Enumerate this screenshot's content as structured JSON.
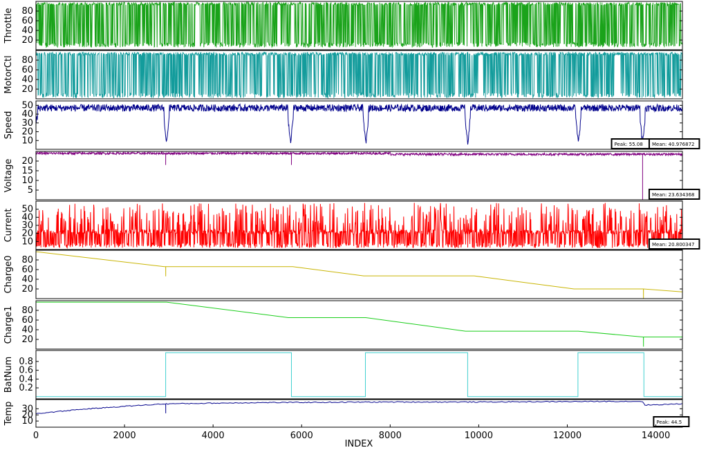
{
  "chart_data": {
    "type": "line",
    "xlabel": "INDEX",
    "xlim": [
      0,
      14600
    ],
    "x_ticks": [
      0,
      2000,
      4000,
      6000,
      8000,
      10000,
      12000,
      14000
    ],
    "x_tick_labels": [
      "0",
      "2000",
      "4000",
      "6000",
      "8000",
      "10000",
      "12000",
      "14000"
    ],
    "panels": [
      {
        "name": "Throttle",
        "ylabel": "Throttle",
        "color": "#1aa31a",
        "ylim": [
          0,
          100
        ],
        "ticks": [
          20,
          40,
          60,
          80
        ],
        "tick_labels": [
          "20",
          "40",
          "60",
          "80"
        ],
        "kind": "pulse",
        "high": 98,
        "low": 5,
        "dense": 0.45,
        "annotations": []
      },
      {
        "name": "MotorCtl",
        "ylabel": "MotorCtl",
        "color": "#139c9c",
        "ylim": [
          0,
          100
        ],
        "ticks": [
          20,
          40,
          60,
          80
        ],
        "tick_labels": [
          "20",
          "40",
          "60",
          "80"
        ],
        "kind": "pulse",
        "high": 96,
        "low": 2,
        "dense": 0.35,
        "annotations": []
      },
      {
        "name": "Speed",
        "ylabel": "Speed",
        "color": "#00008b",
        "ylim": [
          0,
          55
        ],
        "ticks": [
          10,
          20,
          30,
          40,
          50
        ],
        "tick_labels": [
          "10",
          "20",
          "30",
          "40",
          "50"
        ],
        "kind": "noise",
        "base": 47,
        "spread": 4,
        "dips": [
          2950,
          5750,
          7450,
          9750,
          12250,
          13700
        ],
        "annotations": [
          {
            "text": "Peak: 55.08",
            "x": 13000
          },
          {
            "text": "Mean: 40.976872",
            "x": 13850
          }
        ]
      },
      {
        "name": "Voltage",
        "ylabel": "Voltage",
        "color": "#800080",
        "ylim": [
          0,
          25
        ],
        "ticks": [
          5,
          10,
          15,
          20
        ],
        "tick_labels": [
          "5",
          "10",
          "15",
          "20"
        ],
        "kind": "flat",
        "base": 24,
        "spread": 0.6,
        "spikes": [
          2930,
          5770,
          13700
        ],
        "annotations": [
          {
            "text": "Mean: 23.634368",
            "x": 13850
          }
        ]
      },
      {
        "name": "Current",
        "ylabel": "Current",
        "color": "#ff0000",
        "ylim": [
          0,
          60
        ],
        "ticks": [
          10,
          20,
          30,
          40,
          50
        ],
        "tick_labels": [
          "10",
          "20",
          "30",
          "40",
          "50"
        ],
        "kind": "spiky",
        "base": 22,
        "spread": 35,
        "annotations": [
          {
            "text": "Mean: 20.800347",
            "x": 13850
          }
        ]
      },
      {
        "name": "Charge0",
        "ylabel": "Charge0",
        "color": "#c8b400",
        "ylim": [
          0,
          100
        ],
        "ticks": [
          20,
          40,
          60,
          80
        ],
        "tick_labels": [
          "20",
          "40",
          "60",
          "80"
        ],
        "kind": "steps",
        "points": [
          [
            0,
            97
          ],
          [
            2900,
            66
          ],
          [
            2950,
            66
          ],
          [
            5800,
            66
          ],
          [
            7400,
            47
          ],
          [
            9900,
            47
          ],
          [
            12150,
            20
          ],
          [
            13700,
            20
          ],
          [
            14600,
            14
          ]
        ],
        "spikes": [
          2930,
          13720
        ],
        "annotations": []
      },
      {
        "name": "Charge1",
        "ylabel": "Charge1",
        "color": "#19cd19",
        "ylim": [
          0,
          100
        ],
        "ticks": [
          20,
          40,
          60,
          80
        ],
        "tick_labels": [
          "20",
          "40",
          "60",
          "80"
        ],
        "kind": "steps",
        "points": [
          [
            0,
            97
          ],
          [
            2950,
            97
          ],
          [
            5700,
            65
          ],
          [
            7450,
            65
          ],
          [
            9700,
            37
          ],
          [
            12250,
            37
          ],
          [
            13700,
            25
          ],
          [
            14600,
            25
          ]
        ],
        "spikes": [
          13720
        ],
        "annotations": []
      },
      {
        "name": "BatNum",
        "ylabel": "BatNum",
        "color": "#40d0d0",
        "ylim": [
          -0.05,
          1.05
        ],
        "ticks": [
          0.2,
          0.4,
          0.6,
          0.8
        ],
        "tick_labels": [
          "0.2",
          "0.4",
          "0.6",
          "0.8"
        ],
        "kind": "square",
        "edges": [
          2930,
          5770,
          7440,
          9750,
          12240,
          13730
        ],
        "annotations": []
      },
      {
        "name": "Temp",
        "ylabel": "Temp",
        "color": "#00008b",
        "ylim": [
          0,
          45
        ],
        "ticks": [
          10,
          20,
          30
        ],
        "tick_labels": [
          "10",
          "20",
          "30"
        ],
        "kind": "temp",
        "points": [
          [
            0,
            22
          ],
          [
            1000,
            29
          ],
          [
            2000,
            34
          ],
          [
            2900,
            38
          ],
          [
            5000,
            40
          ],
          [
            8000,
            41
          ],
          [
            10000,
            41
          ],
          [
            13000,
            42
          ],
          [
            13700,
            42
          ],
          [
            13750,
            36
          ],
          [
            14600,
            38
          ]
        ],
        "spikes": [
          2930
        ],
        "annotations": [
          {
            "text": "Peak: 44.5",
            "x": 13950
          }
        ]
      }
    ]
  }
}
